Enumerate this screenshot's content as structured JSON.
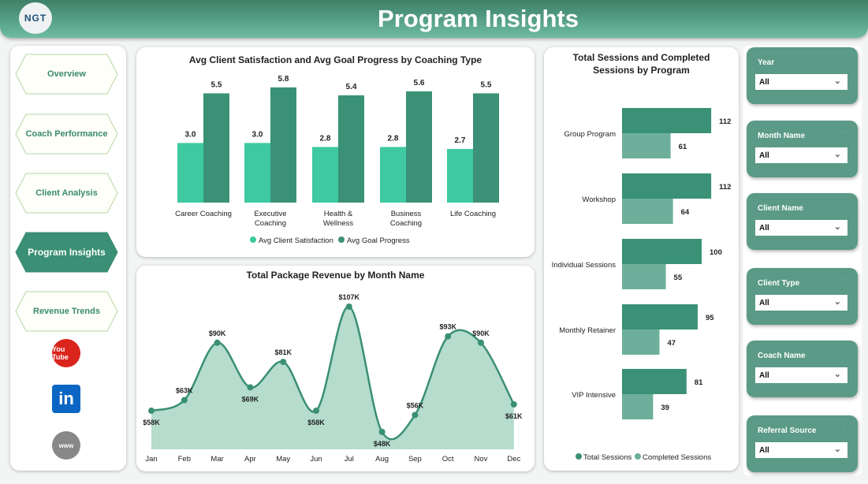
{
  "header": {
    "title": "Program Insights",
    "logo_text": "NGT"
  },
  "nav": {
    "items": [
      {
        "label": "Overview",
        "active": false
      },
      {
        "label": "Coach Performance",
        "active": false
      },
      {
        "label": "Client Analysis",
        "active": false
      },
      {
        "label": "Program Insights",
        "active": true
      },
      {
        "label": "Revenue Trends",
        "active": false
      }
    ],
    "social": [
      {
        "icon": "youtube-icon",
        "label": "You Tube"
      },
      {
        "icon": "linkedin-icon",
        "label": "in"
      },
      {
        "icon": "globe-icon",
        "label": "www"
      }
    ]
  },
  "colors": {
    "header": "#4f9d84",
    "accent_light": "#3ec9a0",
    "accent_dark": "#3a9176",
    "completed": "#6daf9a",
    "slicer": "#5a9a86",
    "area_fill": "#b5dccd"
  },
  "chart_data": [
    {
      "type": "bar",
      "title": "Avg Client Satisfaction and Avg Goal Progress by Coaching Type",
      "categories": [
        "Career Coaching",
        "Executive Coaching",
        "Health & Wellness",
        "Business Coaching",
        "Life Coaching"
      ],
      "category_lines": [
        [
          "Career Coaching"
        ],
        [
          "Executive",
          "Coaching"
        ],
        [
          "Health &",
          "Wellness"
        ],
        [
          "Business",
          "Coaching"
        ],
        [
          "Life Coaching"
        ]
      ],
      "series": [
        {
          "name": "Avg Client Satisfaction",
          "values": [
            3.0,
            3.0,
            2.8,
            2.8,
            2.7
          ]
        },
        {
          "name": "Avg Goal Progress",
          "values": [
            5.5,
            5.8,
            5.4,
            5.6,
            5.5
          ]
        }
      ],
      "legend": "bottom"
    },
    {
      "type": "area",
      "title": "Total Package Revenue by Month Name",
      "categories": [
        "Jan",
        "Feb",
        "Mar",
        "Apr",
        "May",
        "Jun",
        "Jul",
        "Aug",
        "Sep",
        "Oct",
        "Nov",
        "Dec"
      ],
      "values": [
        58,
        63,
        90,
        69,
        81,
        58,
        107,
        48,
        56,
        93,
        90,
        61
      ],
      "labels": [
        "$58K",
        "$63K",
        "$90K",
        "$69K",
        "$81K",
        "$58K",
        "$107K",
        "$48K",
        "$56K",
        "$93K",
        "$90K",
        "$61K"
      ]
    },
    {
      "type": "bar",
      "orientation": "horizontal",
      "title": "Total Sessions and Completed Sessions by Program",
      "categories": [
        "Group Program",
        "Workshop",
        "Individual Sessions",
        "Monthly Retainer",
        "VIP Intensive"
      ],
      "series": [
        {
          "name": "Total Sessions",
          "values": [
            112,
            112,
            100,
            95,
            81
          ]
        },
        {
          "name": "Completed Sessions",
          "values": [
            61,
            64,
            55,
            47,
            39
          ]
        }
      ],
      "legend": "bottom"
    }
  ],
  "slicers": [
    {
      "label": "Year",
      "value": "All"
    },
    {
      "label": "Month Name",
      "value": "All"
    },
    {
      "label": "Client Name",
      "value": "All"
    },
    {
      "label": "Client Type",
      "value": "All"
    },
    {
      "label": "Coach Name",
      "value": "All"
    },
    {
      "label": "Referral Source",
      "value": "All"
    }
  ]
}
